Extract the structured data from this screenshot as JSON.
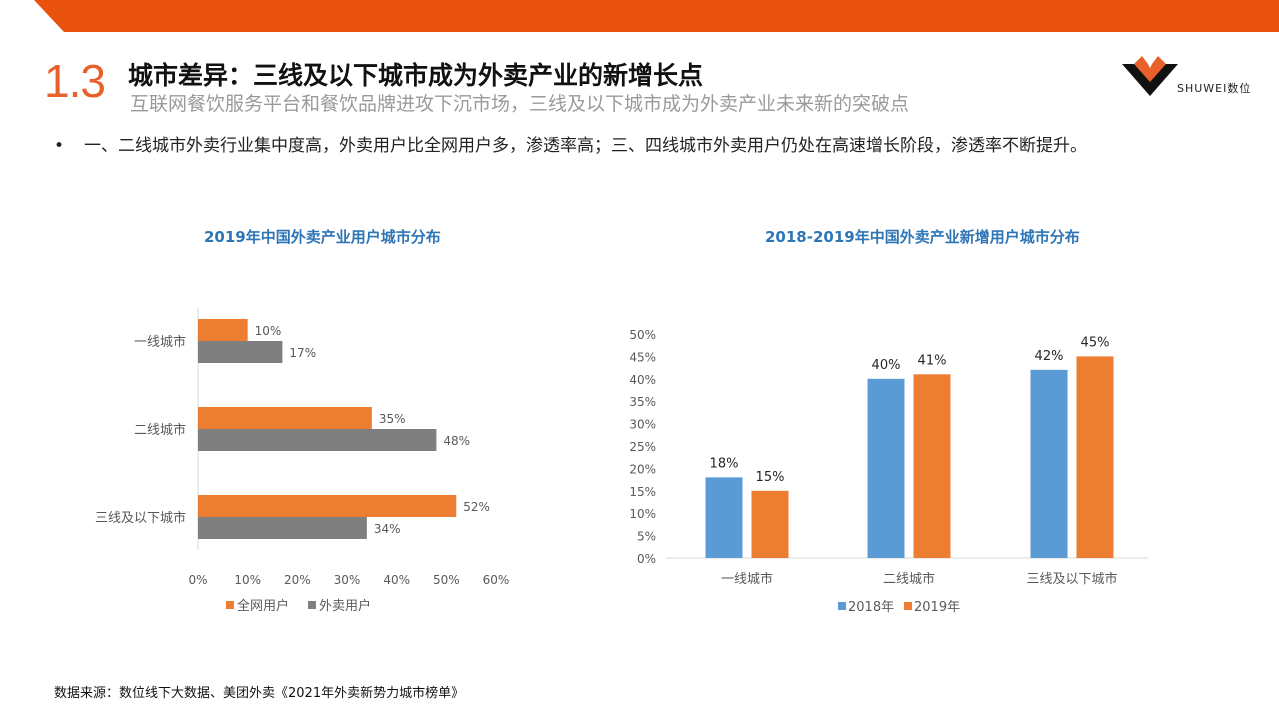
{
  "header": {
    "section_number": "1.3",
    "title": "城市差异：三线及以下城市成为外卖产业的新增长点",
    "subtitle": "互联网餐饮服务平台和餐饮品牌进攻下沉市场，三线及以下城市成为外卖产业未来新的突破点",
    "brand_text": "SHUWEI数位"
  },
  "bullet": {
    "marker": "•",
    "text": "一、二线城市外卖行业集中度高，外卖用户比全网用户多，渗透率高；三、四线城市外卖用户仍处在高速增长阶段，渗透率不断提升。"
  },
  "colors": {
    "accent": "#E8612C",
    "orange": "#ED7D31",
    "gray": "#7F7F7F",
    "blue": "#5B9BD5",
    "title_blue": "#2E75B6"
  },
  "chart_data": [
    {
      "type": "bar",
      "orientation": "horizontal",
      "title": "2019年中国外卖产业用户城市分布",
      "categories": [
        "一线城市",
        "二线城市",
        "三线及以下城市"
      ],
      "series": [
        {
          "name": "全网用户",
          "values": [
            10,
            35,
            52
          ],
          "labels": [
            "10%",
            "35%",
            "52%"
          ],
          "color": "#ED7D31"
        },
        {
          "name": "外卖用户",
          "values": [
            17,
            48,
            34
          ],
          "labels": [
            "17%",
            "48%",
            "34%"
          ],
          "color": "#7F7F7F"
        }
      ],
      "xlim": [
        0,
        60
      ],
      "ticks": [
        "0%",
        "10%",
        "20%",
        "30%",
        "40%",
        "50%",
        "60%"
      ],
      "tick_values": [
        0,
        10,
        20,
        30,
        40,
        50,
        60
      ],
      "grid": false,
      "legend": "bottom"
    },
    {
      "type": "bar",
      "orientation": "vertical",
      "title": "2018-2019年中国外卖产业新增用户城市分布",
      "categories": [
        "一线城市",
        "二线城市",
        "三线及以下城市"
      ],
      "series": [
        {
          "name": "2018年",
          "values": [
            18,
            40,
            42
          ],
          "labels": [
            "18%",
            "40%",
            "42%"
          ],
          "color": "#5B9BD5"
        },
        {
          "name": "2019年",
          "values": [
            15,
            41,
            45
          ],
          "labels": [
            "15%",
            "41%",
            "45%"
          ],
          "color": "#ED7D31"
        }
      ],
      "ylim": [
        0,
        50
      ],
      "ticks": [
        "0%",
        "5%",
        "10%",
        "15%",
        "20%",
        "25%",
        "30%",
        "35%",
        "40%",
        "45%",
        "50%"
      ],
      "tick_values": [
        0,
        5,
        10,
        15,
        20,
        25,
        30,
        35,
        40,
        45,
        50
      ],
      "grid": false,
      "legend": "bottom"
    }
  ],
  "footer": {
    "source": "数据来源：数位线下大数据、美团外卖《2021年外卖新势力城市榜单》"
  }
}
